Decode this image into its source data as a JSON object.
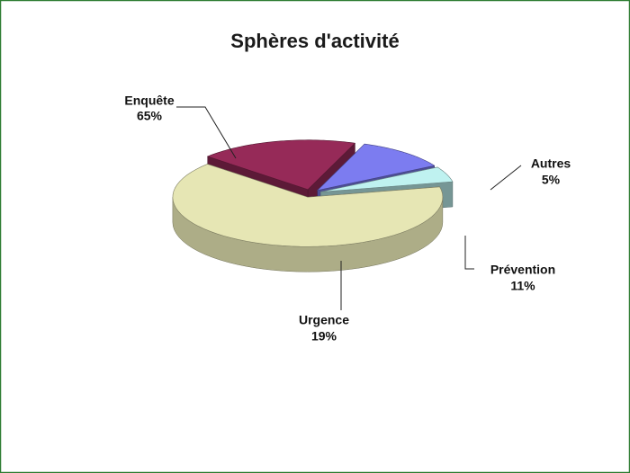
{
  "chart_data": {
    "type": "pie",
    "title": "Sphères d'activité",
    "categories": [
      "Enquête",
      "Urgence",
      "Prévention",
      "Autres"
    ],
    "values": [
      65,
      19,
      11,
      5
    ],
    "value_labels": [
      "65%",
      "19%",
      "11%",
      "5%"
    ],
    "colors": [
      "#e6e6b4",
      "#962a58",
      "#7c7cf0",
      "#bff2f0"
    ]
  }
}
